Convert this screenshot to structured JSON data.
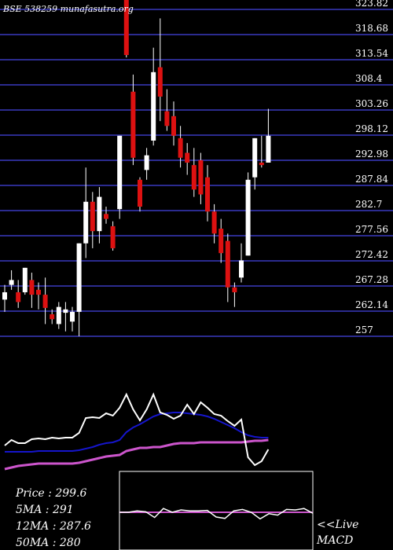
{
  "watermark": "BSE 538259 munafasutra.org",
  "stats": {
    "price": "Price   : 299.6",
    "ma5": "5MA : 291",
    "ma12": "12MA : 287.6",
    "ma50": "50MA : 280"
  },
  "live_label": "<<Live",
  "macd_label": "MACD",
  "colors": {
    "background": "#000000",
    "grid": "#2b2b8f",
    "up": "#ffffff",
    "down": "#dd1111",
    "ma_fast": "#ffffff",
    "ma_mid": "#1515cc",
    "ma_slow": "#cc55cc"
  },
  "chart_data": {
    "type": "candlestick",
    "y_ticks": [
      "323.82",
      "318.68",
      "313.54",
      "308.4",
      "303.26",
      "298.12",
      "292.98",
      "287.84",
      "282.7",
      "277.56",
      "272.42",
      "267.28",
      "262.14",
      "257"
    ],
    "ylim": [
      257,
      323.82
    ],
    "candles": [
      {
        "o": 264.5,
        "h": 267.5,
        "l": 262.0,
        "c": 266.0
      },
      {
        "o": 267.5,
        "h": 270.5,
        "l": 266.5,
        "c": 268.5
      },
      {
        "o": 266.0,
        "h": 268.5,
        "l": 262.8,
        "c": 264.0
      },
      {
        "o": 266.0,
        "h": 271.0,
        "l": 265.5,
        "c": 271.0
      },
      {
        "o": 268.5,
        "h": 270.0,
        "l": 262.8,
        "c": 265.5
      },
      {
        "o": 266.5,
        "h": 268.0,
        "l": 262.5,
        "c": 265.5
      },
      {
        "o": 265.5,
        "h": 269.0,
        "l": 259.5,
        "c": 262.8
      },
      {
        "o": 261.5,
        "h": 262.5,
        "l": 259.5,
        "c": 260.5
      },
      {
        "o": 259.5,
        "h": 264.0,
        "l": 258.5,
        "c": 263.0
      },
      {
        "o": 261.8,
        "h": 264.0,
        "l": 258.0,
        "c": 262.5
      },
      {
        "o": 260.0,
        "h": 263.0,
        "l": 258.0,
        "c": 262.0
      },
      {
        "o": 262.0,
        "h": 276.0,
        "l": 257.0,
        "c": 276.0
      },
      {
        "o": 276.0,
        "h": 291.5,
        "l": 273.0,
        "c": 284.5
      },
      {
        "o": 284.5,
        "h": 286.5,
        "l": 275.0,
        "c": 278.5
      },
      {
        "o": 278.5,
        "h": 287.5,
        "l": 276.0,
        "c": 285.5
      },
      {
        "o": 282.0,
        "h": 283.5,
        "l": 280.0,
        "c": 281.0
      },
      {
        "o": 279.5,
        "h": 280.5,
        "l": 274.5,
        "c": 275.0
      },
      {
        "o": 283.0,
        "h": 298.0,
        "l": 281.0,
        "c": 298.0
      },
      {
        "o": 330.0,
        "h": 340.0,
        "l": 314.0,
        "c": 314.5
      },
      {
        "o": 307.0,
        "h": 310.5,
        "l": 292.0,
        "c": 293.5
      },
      {
        "o": 289.0,
        "h": 289.5,
        "l": 282.5,
        "c": 283.5
      },
      {
        "o": 291.0,
        "h": 295.5,
        "l": 289.0,
        "c": 294.0
      },
      {
        "o": 297.0,
        "h": 316.0,
        "l": 296.0,
        "c": 311.0
      },
      {
        "o": 312.0,
        "h": 322.0,
        "l": 301.0,
        "c": 306.0
      },
      {
        "o": 303.0,
        "h": 307.5,
        "l": 299.0,
        "c": 300.0
      },
      {
        "o": 302.0,
        "h": 305.0,
        "l": 296.0,
        "c": 298.0
      },
      {
        "o": 297.5,
        "h": 300.0,
        "l": 291.5,
        "c": 293.5
      },
      {
        "o": 294.5,
        "h": 296.5,
        "l": 290.0,
        "c": 292.5
      },
      {
        "o": 292.0,
        "h": 295.5,
        "l": 285.5,
        "c": 287.0
      },
      {
        "o": 293.0,
        "h": 294.5,
        "l": 284.0,
        "c": 286.0
      },
      {
        "o": 289.5,
        "h": 292.0,
        "l": 280.5,
        "c": 282.5
      },
      {
        "o": 282.5,
        "h": 284.0,
        "l": 276.0,
        "c": 278.0
      },
      {
        "o": 279.0,
        "h": 281.0,
        "l": 272.0,
        "c": 274.0
      },
      {
        "o": 276.5,
        "h": 278.0,
        "l": 264.0,
        "c": 267.0
      },
      {
        "o": 267.0,
        "h": 268.0,
        "l": 263.0,
        "c": 266.0
      },
      {
        "o": 269.0,
        "h": 276.0,
        "l": 268.0,
        "c": 272.5
      },
      {
        "o": 273.5,
        "h": 290.5,
        "l": 273.5,
        "c": 289.0
      },
      {
        "o": 289.5,
        "h": 297.5,
        "l": 287.0,
        "c": 297.5
      },
      {
        "o": 292.5,
        "h": 298.0,
        "l": 291.5,
        "c": 292.0
      },
      {
        "o": 292.5,
        "h": 303.5,
        "l": 292.5,
        "c": 298.0
      }
    ],
    "indicator_ma_fast": [
      65,
      58,
      62,
      62,
      57,
      56,
      57,
      55,
      56,
      55,
      55,
      49,
      30,
      29,
      30,
      24,
      27,
      17,
      0,
      19,
      33,
      19,
      0,
      23,
      26,
      31,
      27,
      13,
      25,
      10,
      17,
      25,
      27,
      34,
      40,
      32,
      80,
      90,
      85,
      70
    ],
    "indicator_ma_mid": [
      73,
      73,
      73,
      73,
      73,
      72,
      72,
      72,
      72,
      72,
      72,
      71,
      69,
      67,
      64,
      62,
      61,
      58,
      48,
      42,
      38,
      33,
      28,
      25,
      24,
      23,
      23,
      24,
      25,
      26,
      28,
      31,
      35,
      39,
      43,
      48,
      52,
      54,
      55,
      55
    ],
    "indicator_ma_slow": [
      95,
      93,
      91,
      90,
      89,
      88,
      88,
      88,
      88,
      88,
      88,
      87,
      85,
      83,
      81,
      79,
      78,
      77,
      72,
      70,
      68,
      68,
      67,
      67,
      65,
      63,
      62,
      62,
      62,
      61,
      61,
      61,
      61,
      61,
      61,
      61,
      60,
      59,
      59,
      58
    ],
    "macd_line": [
      1.0,
      1.0,
      0.7,
      0.9,
      2.1,
      0.2,
      1.0,
      0.5,
      0.7,
      0.7,
      0.6,
      2.0,
      2.3,
      0.7,
      0.4,
      1.0,
      2.4,
      1.3,
      1.6,
      0.4,
      0.5,
      0.2,
      1.2
    ]
  }
}
